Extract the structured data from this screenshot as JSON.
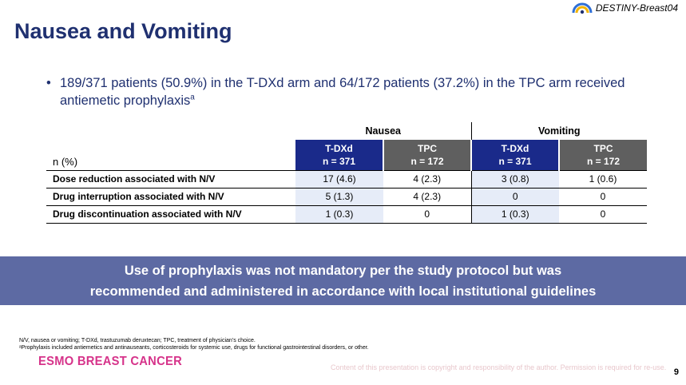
{
  "brand": {
    "name": "DESTINY-Breast04"
  },
  "slide": {
    "title": "Nausea and Vomiting",
    "bullet_main": "189/371 patients (50.9%) in the T-DXd arm and 64/172 patients (37.2%) in the TPC arm received antiemetic prophylaxis",
    "bullet_sup": "a"
  },
  "table": {
    "groups": [
      "Nausea",
      "Vomiting"
    ],
    "row_header": "n (%)",
    "arms": [
      {
        "name": "T-DXd",
        "n": "n = 371",
        "color": "#1a2a8a"
      },
      {
        "name": "TPC",
        "n": "n = 172",
        "color": "#5f5f5f"
      },
      {
        "name": "T-DXd",
        "n": "n = 371",
        "color": "#1a2a8a"
      },
      {
        "name": "TPC",
        "n": "n = 172",
        "color": "#5f5f5f"
      }
    ],
    "rows": [
      {
        "label": "Dose reduction associated with N/V",
        "values": [
          "17 (4.6)",
          "4 (2.3)",
          "3 (0.8)",
          "1 (0.6)"
        ]
      },
      {
        "label": "Drug interruption associated with N/V",
        "values": [
          "5 (1.3)",
          "4 (2.3)",
          "0",
          "0"
        ]
      },
      {
        "label": "Drug discontinuation associated with N/V",
        "values": [
          "1 (0.3)",
          "0",
          "1 (0.3)",
          "0"
        ]
      }
    ]
  },
  "banner": {
    "line1": "Use of prophylaxis was not mandatory per the study protocol but was",
    "line2": "recommended and administered in accordance with local institutional guidelines",
    "color": "#5d6aa3"
  },
  "footer": {
    "note1": "N/V, nausea or vomiting; T-DXd, trastuzumab deruxtecan; TPC, treatment of physician’s choice.",
    "note2": "ᵃProphylaxis included antiemetics and antinauseants, corticosteroids for systemic use, drugs for functional gastrointestinal disorders, or other.",
    "esmo": "ESMO BREAST CANCER",
    "copyright": "Content of this presentation is copyright and responsibility of the author. Permission is required for re-use.",
    "page": "9"
  }
}
